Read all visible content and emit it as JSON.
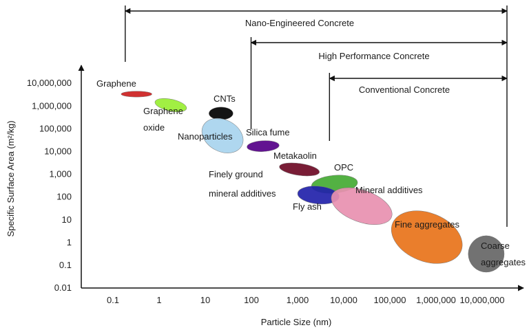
{
  "chart_data": {
    "type": "scatter",
    "title": "",
    "xlabel": "Particle Size (nm)",
    "ylabel": "Specific Surface Area (m²/kg)",
    "x_scale": "log",
    "y_scale": "log",
    "x_ticks": [
      "0.1",
      "1",
      "10",
      "100",
      "1,000",
      "10,000",
      "100,000",
      "1,000,000",
      "10,000,000"
    ],
    "y_ticks": [
      "0.01",
      "0.1",
      "1",
      "10",
      "100",
      "1,000",
      "10,000",
      "100,000",
      "1,000,000",
      "10,000,000"
    ],
    "xlim": [
      0.02,
      30000000
    ],
    "ylim": [
      0.01,
      20000000
    ],
    "grid": false,
    "materials": [
      {
        "label": "Graphene",
        "x": [
          0.15,
          0.7
        ],
        "y": [
          2500000,
          4500000
        ],
        "color": "#cc1f1f"
      },
      {
        "label": "Graphene oxide",
        "x": [
          0.8,
          4
        ],
        "y": [
          600000,
          2000000
        ],
        "color": "#99ee33"
      },
      {
        "label": "CNTs",
        "x": [
          12,
          40
        ],
        "y": [
          250000,
          900000
        ],
        "color": "#000000"
      },
      {
        "label": "Nanoparticles",
        "x": [
          8,
          70
        ],
        "y": [
          10000,
          250000
        ],
        "color": "#a8d4ee"
      },
      {
        "label": "Silica fume",
        "x": [
          80,
          400
        ],
        "y": [
          10000,
          30000
        ],
        "color": "#550088"
      },
      {
        "label": "Metakaolin",
        "x": [
          400,
          3000
        ],
        "y": [
          900.0,
          3000
        ],
        "color": "#6e0a25"
      },
      {
        "label": "OPC",
        "x": [
          2000,
          20000
        ],
        "y": [
          150,
          900
        ],
        "color": "#44aa33"
      },
      {
        "label": "Fly ash",
        "x": [
          1000,
          8000
        ],
        "y": [
          50,
          300
        ],
        "color": "#2222aa"
      },
      {
        "label": "Mineral additives",
        "x": [
          5000,
          120000
        ],
        "y": [
          8,
          200
        ],
        "color": "#e890b0"
      },
      {
        "label": "Fine aggregates",
        "x": [
          100000,
          4000000
        ],
        "y": [
          0.15,
          20
        ],
        "color": "#e8731a"
      },
      {
        "label": "Coarse aggregates",
        "x": [
          5000000,
          30000000
        ],
        "y": [
          0.05,
          2
        ],
        "color": "#666666"
      }
    ],
    "ranges": [
      {
        "label": "Nano-Engineered Concrete",
        "x_min": 0.15,
        "x_max": 10000000,
        "x_drop": 0.15
      },
      {
        "label": "High Performance Concrete",
        "x_min": 80,
        "x_max": 10000000,
        "x_drop": 80
      },
      {
        "label": "Conventional Concrete",
        "x_min": 4000,
        "x_max": 10000000,
        "x_drop": 4000
      }
    ],
    "extra_labels": [
      {
        "text": "Finely ground",
        "anchor": "Metakaolin"
      },
      {
        "text": "mineral additives",
        "anchor": "Metakaolin"
      }
    ]
  }
}
